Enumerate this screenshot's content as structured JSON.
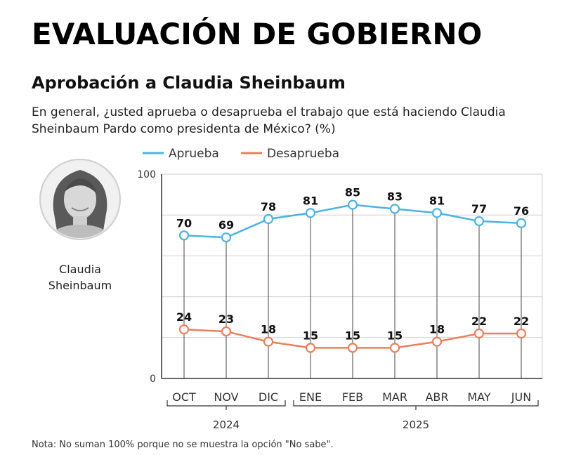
{
  "header": {
    "title": "EVALUACIÓN DE GOBIERNO",
    "subtitle": "Aprobación a Claudia Sheinbaum",
    "question": "En general, ¿usted aprueba o desaprueba el trabajo que está haciendo Claudia Sheinbaum Pardo como presidenta de México? (%)"
  },
  "person": {
    "name_line1": "Claudia",
    "name_line2": "Sheinbaum"
  },
  "note": "Nota: No suman 100% porque no se muestra la opción \"No sabe\".",
  "colors": {
    "aprueba": "#4bb3e0",
    "desaprueba": "#e8805b",
    "grid": "#cfcfcf",
    "axis": "#333333"
  },
  "chart_data": {
    "type": "line",
    "categories": [
      "OCT",
      "NOV",
      "DIC",
      "ENE",
      "FEB",
      "MAR",
      "ABR",
      "MAY",
      "JUN"
    ],
    "year_groups": [
      {
        "label": "2024",
        "categories": [
          "OCT",
          "NOV",
          "DIC"
        ]
      },
      {
        "label": "2025",
        "categories": [
          "ENE",
          "FEB",
          "MAR",
          "ABR",
          "MAY",
          "JUN"
        ]
      }
    ],
    "series": [
      {
        "name": "Aprueba",
        "values": [
          70,
          69,
          78,
          81,
          85,
          83,
          81,
          77,
          76
        ]
      },
      {
        "name": "Desaprueba",
        "values": [
          24,
          23,
          18,
          15,
          15,
          15,
          18,
          22,
          22
        ]
      }
    ],
    "ylim": [
      0,
      100
    ],
    "y_ticks_labeled": [
      "0",
      "100"
    ],
    "grid": true,
    "legend": "top-left"
  }
}
